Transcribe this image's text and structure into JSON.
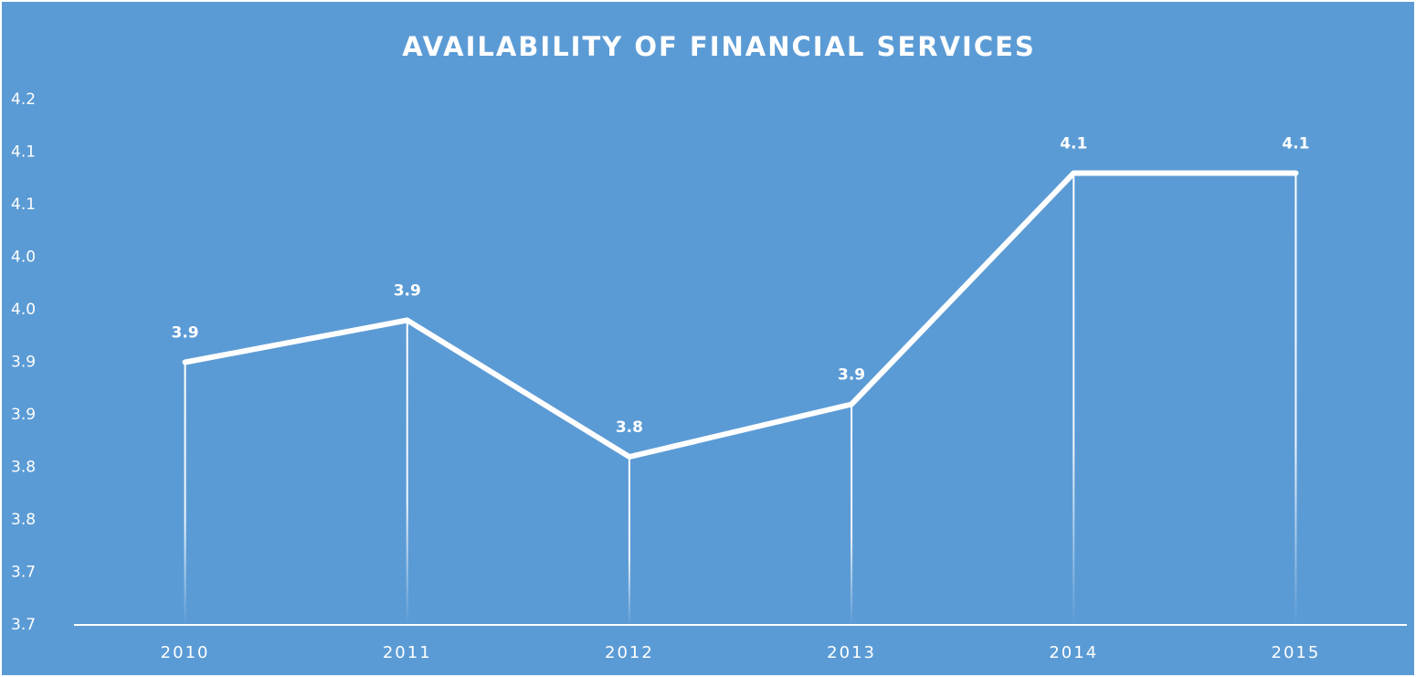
{
  "chart_data": {
    "type": "line",
    "title": "AVAILABILITY OF FINANCIAL SERVICES",
    "categories": [
      "2010",
      "2011",
      "2012",
      "2013",
      "2014",
      "2015"
    ],
    "values": [
      3.9,
      3.94,
      3.81,
      3.86,
      4.08,
      4.08
    ],
    "value_labels": [
      "3.9",
      "3.9",
      "3.8",
      "3.9",
      "4.1",
      "4.1"
    ],
    "color": "#ffffff",
    "ylim": [
      3.65,
      4.15
    ],
    "yticks": [
      {
        "value": 3.65,
        "label": "3.7"
      },
      3.7,
      {
        "value": 3.75,
        "label": "3.8"
      },
      3.8,
      {
        "value": 3.85,
        "label": "3.9"
      },
      3.9,
      {
        "value": 3.95,
        "label": "4.0"
      },
      {
        "value": 4.0,
        "label": "4.0"
      },
      {
        "value": 4.05,
        "label": "4.1"
      },
      4.1,
      {
        "value": 4.15,
        "label": "4.2"
      }
    ],
    "grid": false,
    "drop_lines": true
  }
}
